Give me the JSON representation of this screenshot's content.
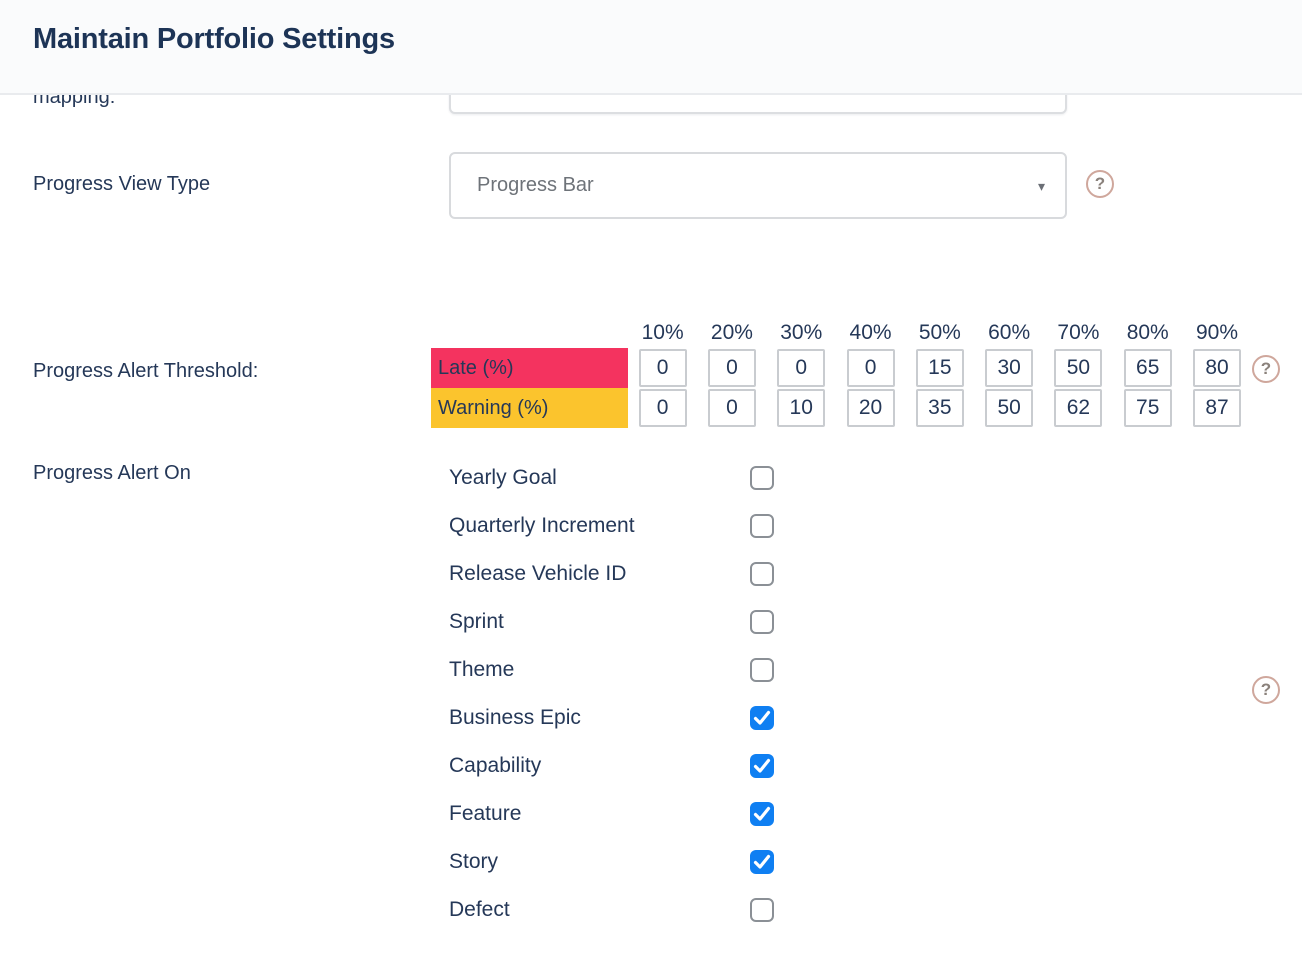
{
  "page": {
    "title": "Maintain Portfolio Settings"
  },
  "form": {
    "mapping": {
      "label": "mapping:",
      "value": ""
    },
    "progress_view_type": {
      "label": "Progress View Type",
      "value": "Progress Bar"
    },
    "threshold": {
      "label": "Progress Alert Threshold:",
      "columns": [
        "10%",
        "20%",
        "30%",
        "40%",
        "50%",
        "60%",
        "70%",
        "80%",
        "90%"
      ],
      "rows": [
        {
          "label": "Late (%)",
          "color": "#f4335f",
          "values": [
            "0",
            "0",
            "0",
            "0",
            "15",
            "30",
            "50",
            "65",
            "80"
          ]
        },
        {
          "label": "Warning (%)",
          "color": "#fbc42d",
          "values": [
            "0",
            "0",
            "10",
            "20",
            "35",
            "50",
            "62",
            "75",
            "87"
          ]
        }
      ]
    },
    "alert_on": {
      "label": "Progress Alert On",
      "items": [
        {
          "label": "Yearly Goal",
          "checked": false
        },
        {
          "label": "Quarterly Increment",
          "checked": false
        },
        {
          "label": "Release Vehicle ID",
          "checked": false
        },
        {
          "label": "Sprint",
          "checked": false
        },
        {
          "label": "Theme",
          "checked": false
        },
        {
          "label": "Business Epic",
          "checked": true
        },
        {
          "label": "Capability",
          "checked": true
        },
        {
          "label": "Feature",
          "checked": true
        },
        {
          "label": "Story",
          "checked": true
        },
        {
          "label": "Defect",
          "checked": false
        }
      ]
    }
  },
  "icons": {
    "help_glyph": "?",
    "dropdown_arrow": "▾"
  },
  "colors": {
    "accent_blue": "#0f7ff2",
    "late_row": "#f4335f",
    "warning_row": "#fbc42d",
    "header_bg": "#fafbfc",
    "text_navy": "#253858"
  }
}
